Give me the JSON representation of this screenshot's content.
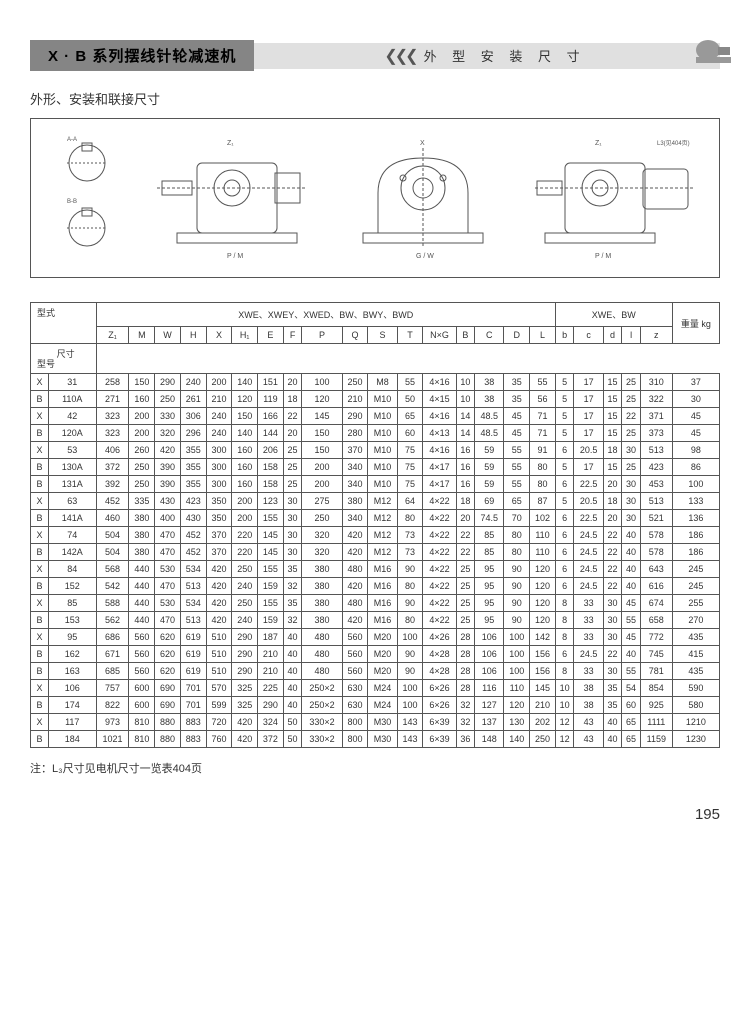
{
  "header": {
    "title": "X · B 系列摆线针轮减速机",
    "section": "外 型 安 装 尺 寸"
  },
  "subtitle": "外形、安装和联接尺寸",
  "diagram_labels": {
    "d1": "A-A / B-B 截面",
    "d2": "侧视图 Z₁",
    "d3": "正视图 X",
    "d4": "装配图 Z₁ L3(见404页)"
  },
  "table": {
    "group1_header": "XWE、XWEY、XWED、BW、BWY、BWD",
    "group2_header": "XWE、BW",
    "left_label_1": "型式",
    "left_label_2": "尺寸",
    "left_label_3": "型号",
    "cols": [
      "Z₁",
      "M",
      "W",
      "H",
      "X",
      "H₁",
      "E",
      "F",
      "P",
      "Q",
      "S",
      "T",
      "N×G",
      "B",
      "C",
      "D",
      "L",
      "b",
      "c",
      "d",
      "l",
      "z",
      "重量 kg"
    ],
    "rows": [
      [
        "X",
        "31",
        "258",
        "150",
        "290",
        "240",
        "200",
        "140",
        "151",
        "20",
        "100",
        "250",
        "M8",
        "55",
        "4×16",
        "10",
        "38",
        "35",
        "55",
        "5",
        "17",
        "15",
        "25",
        "310",
        "37"
      ],
      [
        "B",
        "110A",
        "271",
        "160",
        "250",
        "261",
        "210",
        "120",
        "119",
        "18",
        "120",
        "210",
        "M10",
        "50",
        "4×15",
        "10",
        "38",
        "35",
        "56",
        "5",
        "17",
        "15",
        "25",
        "322",
        "30"
      ],
      [
        "X",
        "42",
        "323",
        "200",
        "330",
        "306",
        "240",
        "150",
        "166",
        "22",
        "145",
        "290",
        "M10",
        "65",
        "4×16",
        "14",
        "48.5",
        "45",
        "71",
        "5",
        "17",
        "15",
        "22",
        "371",
        "45"
      ],
      [
        "B",
        "120A",
        "323",
        "200",
        "320",
        "296",
        "240",
        "140",
        "144",
        "20",
        "150",
        "280",
        "M10",
        "60",
        "4×13",
        "14",
        "48.5",
        "45",
        "71",
        "5",
        "17",
        "15",
        "25",
        "373",
        "45"
      ],
      [
        "X",
        "53",
        "406",
        "260",
        "420",
        "355",
        "300",
        "160",
        "206",
        "25",
        "150",
        "370",
        "M10",
        "75",
        "4×16",
        "16",
        "59",
        "55",
        "91",
        "6",
        "20.5",
        "18",
        "30",
        "513",
        "98"
      ],
      [
        "B",
        "130A",
        "372",
        "250",
        "390",
        "355",
        "300",
        "160",
        "158",
        "25",
        "200",
        "340",
        "M10",
        "75",
        "4×17",
        "16",
        "59",
        "55",
        "80",
        "5",
        "17",
        "15",
        "25",
        "423",
        "86"
      ],
      [
        "B",
        "131A",
        "392",
        "250",
        "390",
        "355",
        "300",
        "160",
        "158",
        "25",
        "200",
        "340",
        "M10",
        "75",
        "4×17",
        "16",
        "59",
        "55",
        "80",
        "6",
        "22.5",
        "20",
        "30",
        "453",
        "100"
      ],
      [
        "X",
        "63",
        "452",
        "335",
        "430",
        "423",
        "350",
        "200",
        "123",
        "30",
        "275",
        "380",
        "M12",
        "64",
        "4×22",
        "18",
        "69",
        "65",
        "87",
        "5",
        "20.5",
        "18",
        "30",
        "513",
        "133"
      ],
      [
        "B",
        "141A",
        "460",
        "380",
        "400",
        "430",
        "350",
        "200",
        "155",
        "30",
        "250",
        "340",
        "M12",
        "80",
        "4×22",
        "20",
        "74.5",
        "70",
        "102",
        "6",
        "22.5",
        "20",
        "30",
        "521",
        "136"
      ],
      [
        "X",
        "74",
        "504",
        "380",
        "470",
        "452",
        "370",
        "220",
        "145",
        "30",
        "320",
        "420",
        "M12",
        "73",
        "4×22",
        "22",
        "85",
        "80",
        "110",
        "6",
        "24.5",
        "22",
        "40",
        "578",
        "186"
      ],
      [
        "B",
        "142A",
        "504",
        "380",
        "470",
        "452",
        "370",
        "220",
        "145",
        "30",
        "320",
        "420",
        "M12",
        "73",
        "4×22",
        "22",
        "85",
        "80",
        "110",
        "6",
        "24.5",
        "22",
        "40",
        "578",
        "186"
      ],
      [
        "X",
        "84",
        "568",
        "440",
        "530",
        "534",
        "420",
        "250",
        "155",
        "35",
        "380",
        "480",
        "M16",
        "90",
        "4×22",
        "25",
        "95",
        "90",
        "120",
        "6",
        "24.5",
        "22",
        "40",
        "643",
        "245"
      ],
      [
        "B",
        "152",
        "542",
        "440",
        "470",
        "513",
        "420",
        "240",
        "159",
        "32",
        "380",
        "420",
        "M16",
        "80",
        "4×22",
        "25",
        "95",
        "90",
        "120",
        "6",
        "24.5",
        "22",
        "40",
        "616",
        "245"
      ],
      [
        "X",
        "85",
        "588",
        "440",
        "530",
        "534",
        "420",
        "250",
        "155",
        "35",
        "380",
        "480",
        "M16",
        "90",
        "4×22",
        "25",
        "95",
        "90",
        "120",
        "8",
        "33",
        "30",
        "45",
        "674",
        "255"
      ],
      [
        "B",
        "153",
        "562",
        "440",
        "470",
        "513",
        "420",
        "240",
        "159",
        "32",
        "380",
        "420",
        "M16",
        "80",
        "4×22",
        "25",
        "95",
        "90",
        "120",
        "8",
        "33",
        "30",
        "55",
        "658",
        "270"
      ],
      [
        "X",
        "95",
        "686",
        "560",
        "620",
        "619",
        "510",
        "290",
        "187",
        "40",
        "480",
        "560",
        "M20",
        "100",
        "4×26",
        "28",
        "106",
        "100",
        "142",
        "8",
        "33",
        "30",
        "45",
        "772",
        "435"
      ],
      [
        "B",
        "162",
        "671",
        "560",
        "620",
        "619",
        "510",
        "290",
        "210",
        "40",
        "480",
        "560",
        "M20",
        "90",
        "4×28",
        "28",
        "106",
        "100",
        "156",
        "6",
        "24.5",
        "22",
        "40",
        "745",
        "415"
      ],
      [
        "B",
        "163",
        "685",
        "560",
        "620",
        "619",
        "510",
        "290",
        "210",
        "40",
        "480",
        "560",
        "M20",
        "90",
        "4×28",
        "28",
        "106",
        "100",
        "156",
        "8",
        "33",
        "30",
        "55",
        "781",
        "435"
      ],
      [
        "X",
        "106",
        "757",
        "600",
        "690",
        "701",
        "570",
        "325",
        "225",
        "40",
        "250×2",
        "630",
        "M24",
        "100",
        "6×26",
        "28",
        "116",
        "110",
        "145",
        "10",
        "38",
        "35",
        "54",
        "854",
        "590"
      ],
      [
        "B",
        "174",
        "822",
        "600",
        "690",
        "701",
        "599",
        "325",
        "290",
        "40",
        "250×2",
        "630",
        "M24",
        "100",
        "6×26",
        "32",
        "127",
        "120",
        "210",
        "10",
        "38",
        "35",
        "60",
        "925",
        "580"
      ],
      [
        "X",
        "117",
        "973",
        "810",
        "880",
        "883",
        "720",
        "420",
        "324",
        "50",
        "330×2",
        "800",
        "M30",
        "143",
        "6×39",
        "32",
        "137",
        "130",
        "202",
        "12",
        "43",
        "40",
        "65",
        "1111",
        "1210"
      ],
      [
        "B",
        "184",
        "1021",
        "810",
        "880",
        "883",
        "760",
        "420",
        "372",
        "50",
        "330×2",
        "800",
        "M30",
        "143",
        "6×39",
        "36",
        "148",
        "140",
        "250",
        "12",
        "43",
        "40",
        "65",
        "1159",
        "1230"
      ]
    ]
  },
  "note": "注：L₃尺寸见电机尺寸一览表404页",
  "page": "195",
  "colors": {
    "border": "#555555",
    "header_dark": "#858585",
    "header_light": "#e0e0e0"
  }
}
